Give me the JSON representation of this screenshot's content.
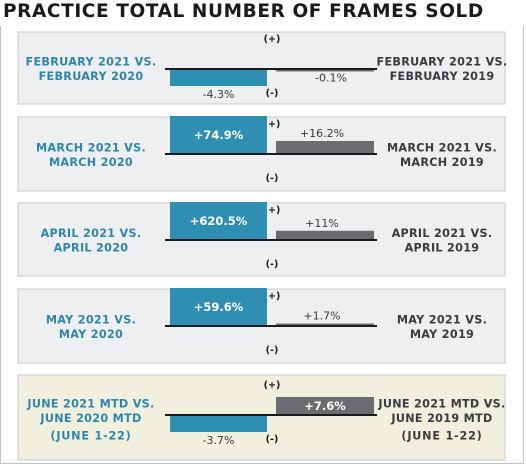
{
  "title": "PRACTICE TOTAL NUMBER OF FRAMES SOLD",
  "colors": {
    "panel_bg": "#eeeff1",
    "panel_bg_june": "#f1f0de",
    "panel_border": "#c5c8cc",
    "bar_blue": "#2f8fb3",
    "bar_gray": "#6b6c70",
    "label_blue": "#2f86ac",
    "label_dark": "#3a3b3e",
    "axis": "#1a1a1a"
  },
  "chart_data": {
    "type": "bar",
    "positive_marker": "(+)",
    "negative_marker": "(-)",
    "panels": [
      {
        "left_label": [
          "FEBRUARY 2021 VS.",
          "FEBRUARY 2020"
        ],
        "right_label": [
          "FEBRUARY 2021 VS.",
          "FEBRUARY 2019"
        ],
        "vs_2020": {
          "value": -4.3,
          "label": "-4.3%"
        },
        "vs_2019": {
          "value": -0.1,
          "label": "-0.1%"
        },
        "highlight": false
      },
      {
        "left_label": [
          "MARCH 2021 VS.",
          "MARCH 2020"
        ],
        "right_label": [
          "MARCH 2021 VS.",
          "MARCH 2019"
        ],
        "vs_2020": {
          "value": 74.9,
          "label": "+74.9%"
        },
        "vs_2019": {
          "value": 16.2,
          "label": "+16.2%"
        },
        "highlight": false
      },
      {
        "left_label": [
          "APRIL 2021 VS.",
          "APRIL 2020"
        ],
        "right_label": [
          "APRIL 2021 VS.",
          "APRIL 2019"
        ],
        "vs_2020": {
          "value": 620.5,
          "label": "+620.5%"
        },
        "vs_2019": {
          "value": 11,
          "label": "+11%"
        },
        "highlight": false
      },
      {
        "left_label": [
          "MAY 2021 VS.",
          "MAY 2020"
        ],
        "right_label": [
          "MAY 2021 VS.",
          "MAY 2019"
        ],
        "vs_2020": {
          "value": 59.6,
          "label": "+59.6%"
        },
        "vs_2019": {
          "value": 1.7,
          "label": "+1.7%"
        },
        "highlight": false
      },
      {
        "left_label": [
          "JUNE 2021 MTD VS.",
          "JUNE 2020 MTD",
          "(JUNE 1-22)"
        ],
        "right_label": [
          "JUNE 2021 MTD VS.",
          "JUNE 2019 MTD",
          "(JUNE 1-22)"
        ],
        "vs_2020": {
          "value": -3.7,
          "label": "-3.7%"
        },
        "vs_2019": {
          "value": 7.6,
          "label": "+7.6%"
        },
        "highlight": true
      }
    ]
  }
}
